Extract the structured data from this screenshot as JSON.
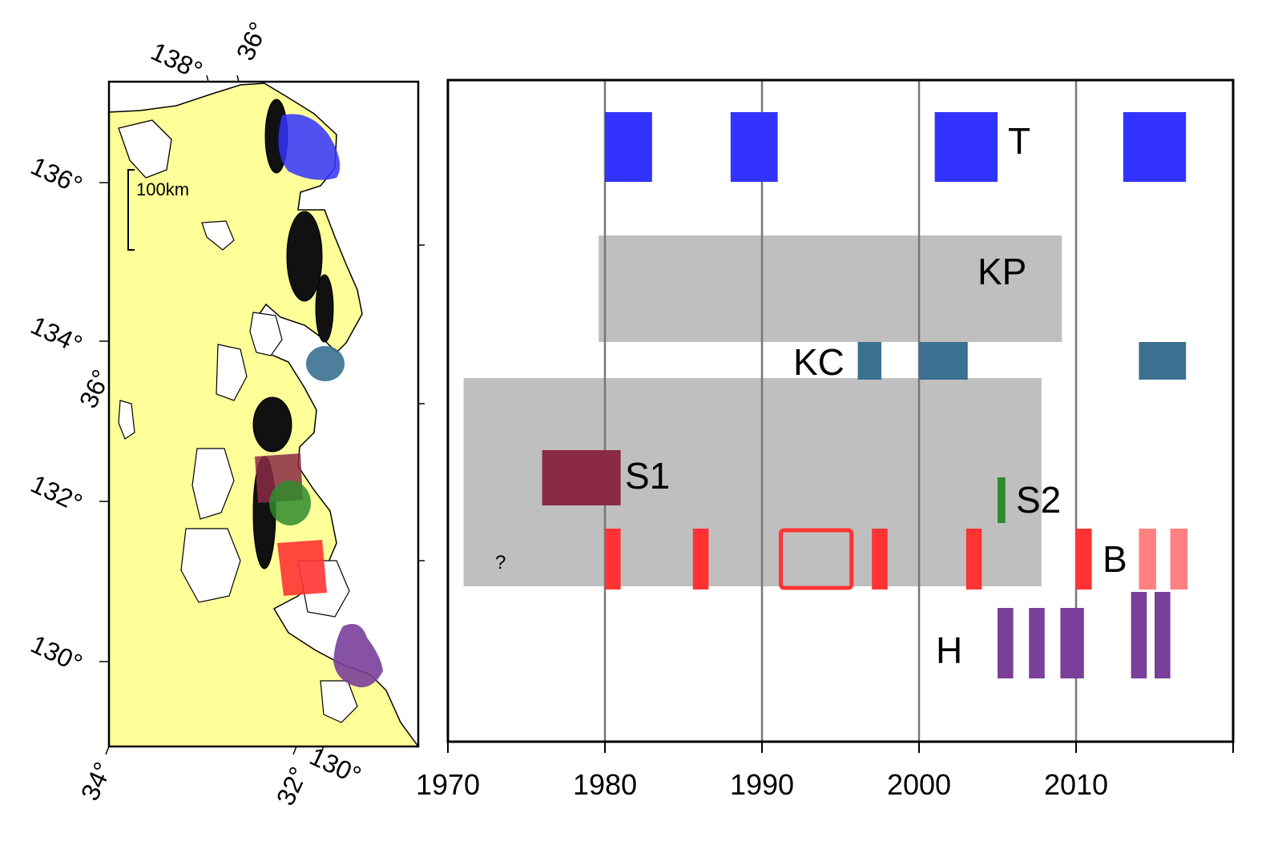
{
  "map": {
    "scale_label": "100km",
    "left_ticks": [
      "136°",
      "134°",
      "132°",
      "130°"
    ],
    "diag_labels": [
      "36°",
      "36°"
    ],
    "bottom_ticks": [
      "34°",
      "32°",
      "130°"
    ],
    "top_ticks": [
      "138°",
      "36°"
    ]
  },
  "colors": {
    "T": "#3333ff",
    "KP": "#bfbfbf",
    "KC": "#3a7090",
    "S1": "#8b2a45",
    "S2": "#2e8b2e",
    "B": "#ff3333",
    "B_light": "#ff8080",
    "H": "#7a3f9a",
    "land": "#ffff99",
    "quakes": "#111111"
  },
  "chart_data": {
    "type": "timeline",
    "title": "",
    "xlabel": "",
    "ylabel": "",
    "xlim": [
      1970,
      2020
    ],
    "x_ticks": [
      1970,
      1980,
      1990,
      2000,
      2010
    ],
    "x_tick_labels": [
      "1970",
      "1980",
      "1990",
      "2000",
      "2010"
    ],
    "vertical_grid": [
      1980,
      1990,
      2000,
      2010
    ],
    "series": [
      {
        "name": "T",
        "label": "T",
        "color": "#3333ff",
        "intervals": [
          [
            1980.0,
            1983.0
          ],
          [
            1988.0,
            1991.0
          ],
          [
            2001.0,
            2005.0
          ],
          [
            2013.0,
            2017.0
          ]
        ]
      },
      {
        "name": "KP",
        "label": "KP",
        "color": "#bfbfbf",
        "intervals": [
          [
            1979.6,
            2009.1
          ]
        ]
      },
      {
        "name": "KC",
        "label": "KC",
        "color": "#3a7090",
        "intervals": [
          [
            1996.1,
            1997.6
          ],
          [
            2000.0,
            2003.1
          ],
          [
            2014.0,
            2017.0
          ]
        ]
      },
      {
        "name": "S1",
        "label": "S1",
        "color": "#8b2a45",
        "intervals": [
          [
            1976.0,
            1981.0
          ]
        ]
      },
      {
        "name": "S2",
        "label": "S2",
        "color": "#2e8b2e",
        "intervals": [
          [
            2005.0,
            2005.5
          ]
        ]
      },
      {
        "name": "B",
        "label": "B",
        "color": "#ff3333",
        "intervals": [
          [
            1980.0,
            1981.0
          ],
          [
            1985.6,
            1986.6
          ],
          [
            1997.0,
            1998.0
          ],
          [
            2003.0,
            2004.0
          ],
          [
            2010.0,
            2011.0
          ]
        ],
        "outlined_intervals": [
          [
            1991.2,
            1995.7
          ]
        ],
        "faded_intervals": [
          [
            2014.0,
            2015.1
          ],
          [
            2016.0,
            2017.1
          ]
        ]
      },
      {
        "name": "S-gray",
        "label": "?",
        "color": "#bfbfbf",
        "intervals": [
          [
            1971.0,
            2007.8
          ]
        ]
      },
      {
        "name": "H",
        "label": "H",
        "color": "#7a3f9a",
        "intervals": [
          [
            2005.0,
            2006.0
          ],
          [
            2007.0,
            2008.0
          ],
          [
            2009.0,
            2010.5
          ],
          [
            2013.5,
            2014.5
          ],
          [
            2015.0,
            2016.0
          ]
        ]
      }
    ]
  }
}
